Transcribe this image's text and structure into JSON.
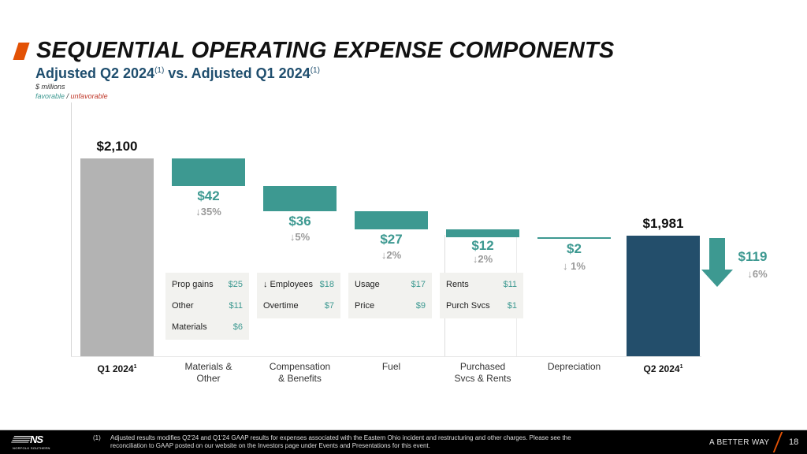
{
  "header": {
    "title": "SEQUENTIAL OPERATING EXPENSE COMPONENTS",
    "subtitle_part1": "Adjusted Q2 2024",
    "subtitle_sup1": "(1)",
    "subtitle_part2": " vs. Adjusted Q1 2024",
    "subtitle_sup2": "(1)",
    "units": "$ millions",
    "legend_favorable": "favorable",
    "legend_separator": " / ",
    "legend_unfavorable": "unfavorable"
  },
  "colors": {
    "favorable": "#3d9991",
    "unfavorable": "#c0392b",
    "start_total": "#b3b3b3",
    "end_total": "#234e6b",
    "accent": "#e35205"
  },
  "chart_data": {
    "type": "waterfall",
    "title": "SEQUENTIAL OPERATING EXPENSE COMPONENTS",
    "units": "$ millions",
    "ylim": [
      1900,
      2110
    ],
    "start": {
      "category": "Q1 2024",
      "sup": "1",
      "value": 2100,
      "label": "$2,100"
    },
    "steps": [
      {
        "category_line1": "Materials &",
        "category_line2": "Other",
        "change": -42,
        "label": "$42",
        "pct": "↓35%",
        "details": [
          {
            "name": "Prop gains",
            "value": "$25"
          },
          {
            "name": "Other",
            "value": "$11"
          },
          {
            "name": "Materials",
            "value": "$6"
          }
        ]
      },
      {
        "category_line1": "Compensation",
        "category_line2": "& Benefits",
        "change": -36,
        "label": "$36",
        "pct": "↓5%",
        "details": [
          {
            "name": "↓ Employees",
            "value": "$18"
          },
          {
            "name": "Overtime",
            "value": "$7"
          }
        ]
      },
      {
        "category_line1": "Fuel",
        "category_line2": "",
        "change": -27,
        "label": "$27",
        "pct": "↓2%",
        "details": [
          {
            "name": "Usage",
            "value": "$17"
          },
          {
            "name": "Price",
            "value": "$9"
          }
        ]
      },
      {
        "category_line1": "Purchased",
        "category_line2": "Svcs & Rents",
        "change": -12,
        "label": "$12",
        "pct": "↓2%",
        "details": [
          {
            "name": "Rents",
            "value": "$11"
          },
          {
            "name": "Purch Svcs",
            "value": "$1"
          }
        ]
      },
      {
        "category_line1": "Depreciation",
        "category_line2": "",
        "change": -2,
        "label": "$2",
        "pct": "↓ 1%",
        "details": []
      }
    ],
    "end": {
      "category": "Q2 2024",
      "sup": "1",
      "value": 1981,
      "label": "$1,981"
    },
    "total_change": {
      "value": -119,
      "label": "$119",
      "pct": "↓6%"
    }
  },
  "footer": {
    "logo_text": "NS",
    "logo_subtext": "NORFOLK SOUTHERN",
    "footnote_number": "(1)",
    "footnote_text": "Adjusted results modifies Q2'24 and Q1'24 GAAP results for expenses associated with the Eastern Ohio incident and restructuring and other charges.  Please see the reconciliation to GAAP posted on our website on the Investors page under Events and Presentations for this event.",
    "tagline": "A BETTER WAY",
    "page_number": "18"
  }
}
